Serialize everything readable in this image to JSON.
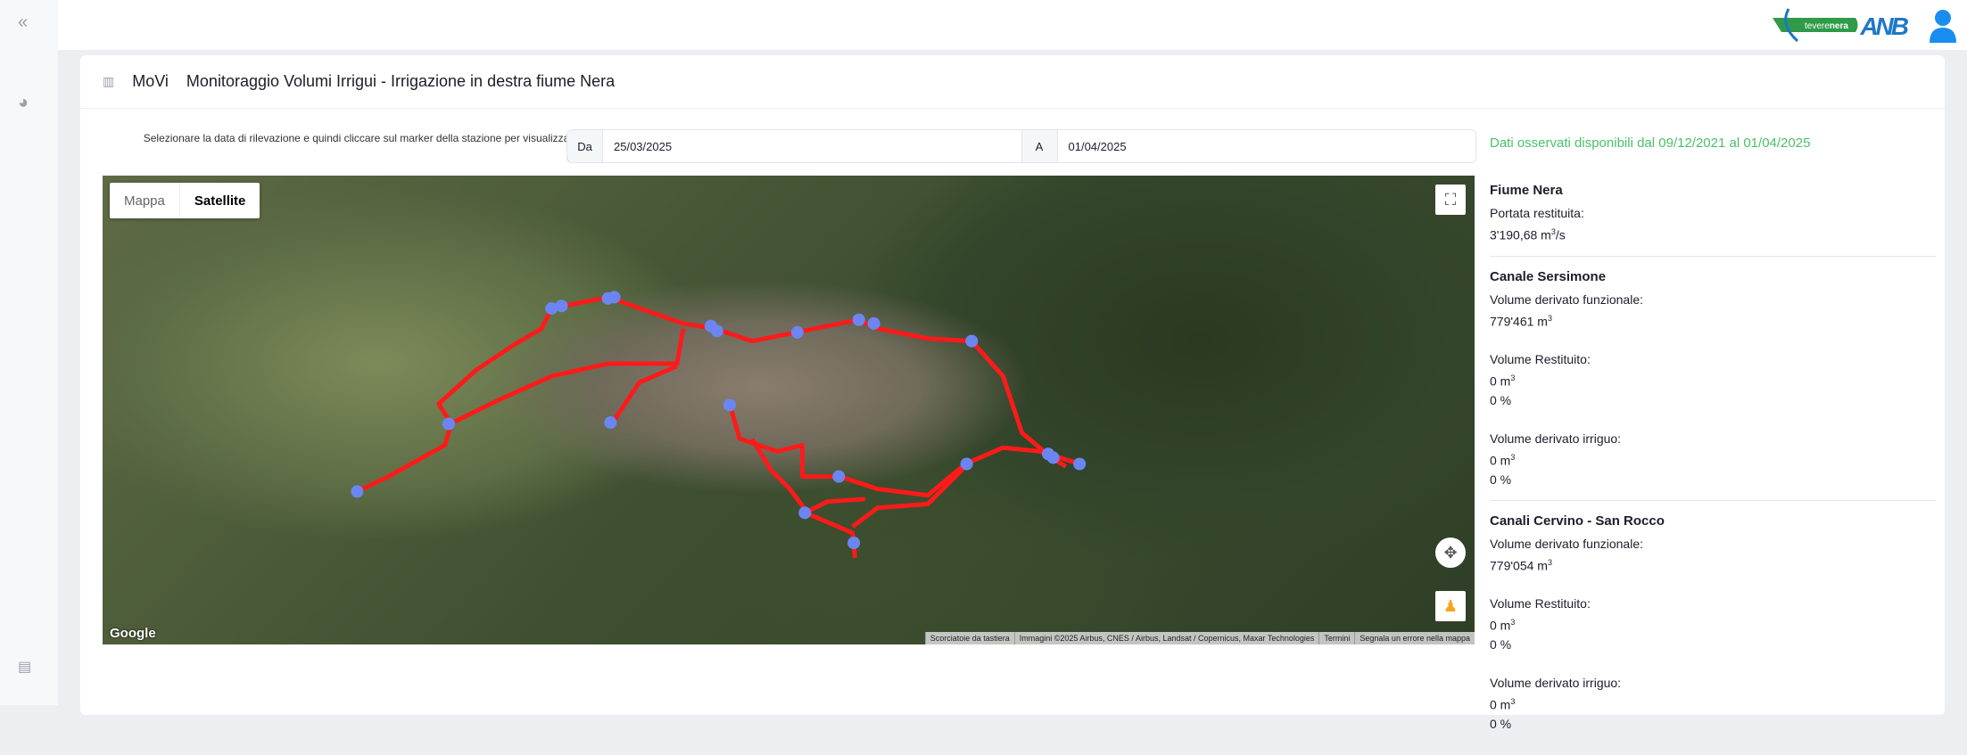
{
  "sidebar": {
    "items": [
      {
        "icon": "chevrons-left-icon"
      },
      {
        "icon": "dashboard-gauge-icon"
      },
      {
        "icon": "document-icon"
      }
    ]
  },
  "header": {
    "logos": [
      "teverenera",
      "ANB"
    ],
    "logo_anb": "ANB",
    "user_icon": "user-icon"
  },
  "page": {
    "icon": "map-icon",
    "app": "MoVi",
    "title": "Monitoraggio Volumi Irrigui - Irrigazione in destra fiume Nera"
  },
  "form": {
    "instruction": "Selezionare la data di rilevazione e quindi cliccare sul marker della stazione per visualizzare i dati",
    "from_label": "Da",
    "from_value": "25/03/2025",
    "to_label": "A",
    "to_value": "01/04/2025"
  },
  "availability": "Dati osservati disponibili dal 09/12/2021 al 01/04/2025",
  "map": {
    "type_buttons": [
      "Mappa",
      "Satellite"
    ],
    "selected": "Satellite",
    "google": "Google",
    "attribution": [
      "Scorciatoie da tastiera",
      "Immagini ©2025 Airbus, CNES / Airbus, Landsat / Copernicus, Maxar Technologies",
      "Termini",
      "Segnala un errore nella mappa"
    ],
    "colors": {
      "canal": "#ff1a1a",
      "marker": "#6b86f2"
    }
  },
  "panel": {
    "fiume": {
      "title": "Fiume Nera",
      "label": "Portata restituita:",
      "value": "3'190,68 m",
      "unit_sup": "3",
      "unit_tail": "/s"
    },
    "sersimone": {
      "title": "Canale Sersimone",
      "f_label": "Volume derivato funzionale:",
      "f_value": "779'461 m",
      "r_label": "Volume Restituito:",
      "r_value": "0 m",
      "r_pct": "0 %",
      "i_label": "Volume derivato irriguo:",
      "i_value": "0 m",
      "i_pct": "0 %",
      "sup": "3"
    },
    "cervino": {
      "title": "Canali Cervino - San Rocco",
      "f_label": "Volume derivato funzionale:",
      "f_value": "779'054 m",
      "r_label": "Volume Restituito:",
      "r_value": "0 m",
      "r_pct": "0 %",
      "i_label": "Volume derivato irriguo:",
      "i_value": "0 m",
      "i_pct": "0 %",
      "sup": "3"
    }
  }
}
